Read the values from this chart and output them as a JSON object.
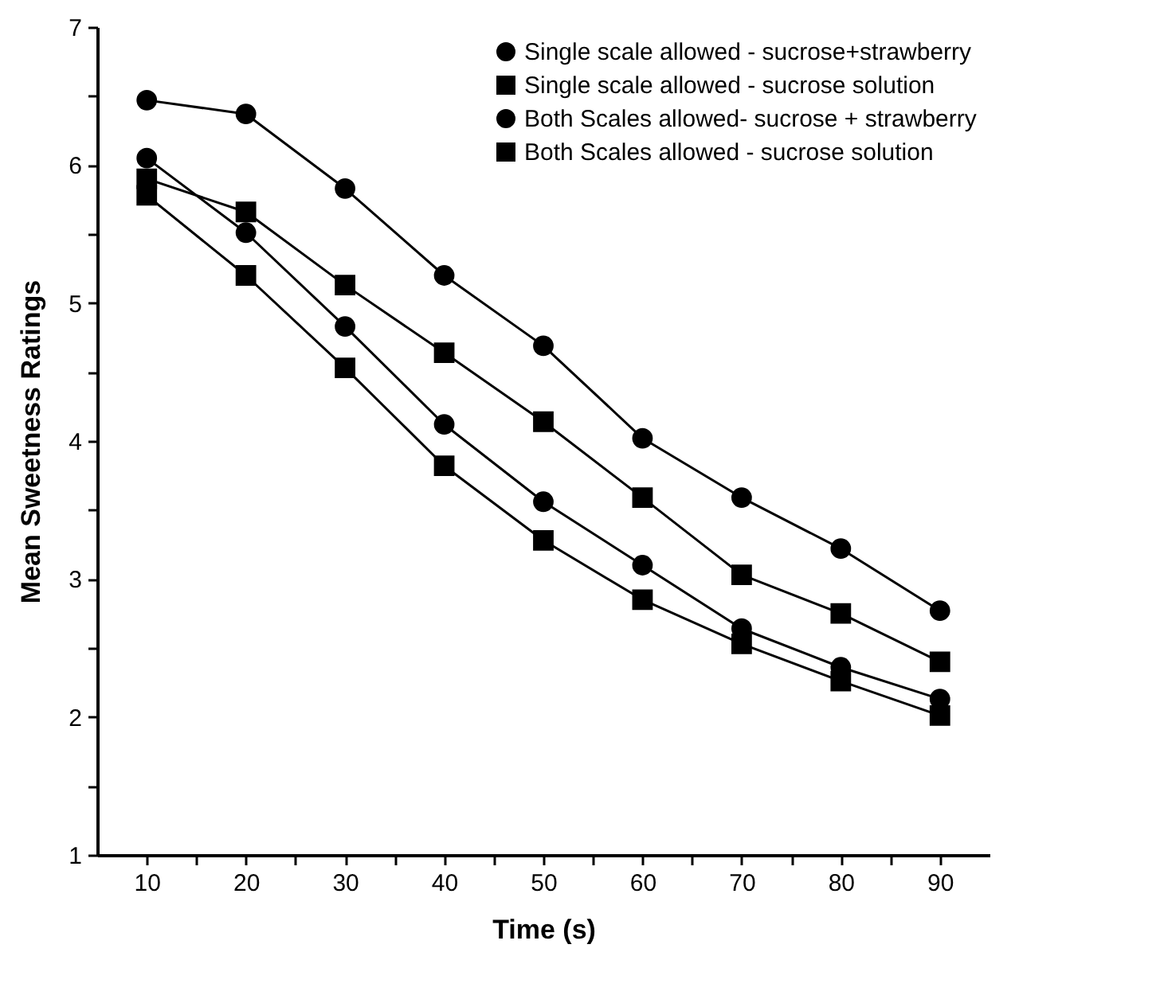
{
  "chart_data": {
    "type": "line",
    "xlabel": "Time (s)",
    "ylabel": "Mean Sweetness Ratings",
    "x": [
      10,
      20,
      30,
      40,
      50,
      60,
      70,
      80,
      90
    ],
    "series": [
      {
        "name": "Single scale allowed - sucrose+strawberry",
        "color": "#000000",
        "marker": "circle",
        "values": [
          6.47,
          6.37,
          5.83,
          5.2,
          4.69,
          4.02,
          3.59,
          3.22,
          2.77
        ]
      },
      {
        "name": "Single scale allowed - sucrose solution",
        "color": "#000000",
        "marker": "square",
        "values": [
          5.9,
          5.66,
          5.13,
          4.64,
          4.14,
          3.59,
          3.03,
          2.75,
          2.4
        ]
      },
      {
        "name": "Both Scales allowed- sucrose + strawberry",
        "color": "#000000",
        "marker": "circle",
        "values": [
          6.05,
          5.51,
          4.83,
          4.12,
          3.56,
          3.1,
          2.64,
          2.36,
          2.13
        ]
      },
      {
        "name": "Both Scales allowed - sucrose solution",
        "color": "#000000",
        "marker": "square",
        "values": [
          5.78,
          5.2,
          4.53,
          3.82,
          3.28,
          2.85,
          2.53,
          2.26,
          2.01
        ]
      }
    ],
    "xlim": [
      5,
      95
    ],
    "xticks": [
      10,
      {
        "value": 15,
        "label": null
      },
      20,
      {
        "value": 25,
        "label": null
      },
      30,
      {
        "value": 35,
        "label": null
      },
      40,
      {
        "value": 45,
        "label": null
      },
      50,
      {
        "value": 55,
        "label": null
      },
      60,
      {
        "value": 65,
        "label": null
      },
      70,
      {
        "value": 75,
        "label": null
      },
      80,
      {
        "value": 85,
        "label": null
      },
      90
    ],
    "ylim": [
      1,
      7
    ],
    "yticks": [
      1,
      {
        "value": 1.5,
        "label": null
      },
      2,
      {
        "value": 2.5,
        "label": null
      },
      3,
      {
        "value": 3.5,
        "label": null
      },
      4,
      {
        "value": 4.5,
        "label": null
      },
      5,
      {
        "value": 5.5,
        "label": null
      },
      6,
      {
        "value": 6.5,
        "label": null
      },
      7
    ],
    "grid": false,
    "legend": "top right",
    "line_style": "solid"
  }
}
